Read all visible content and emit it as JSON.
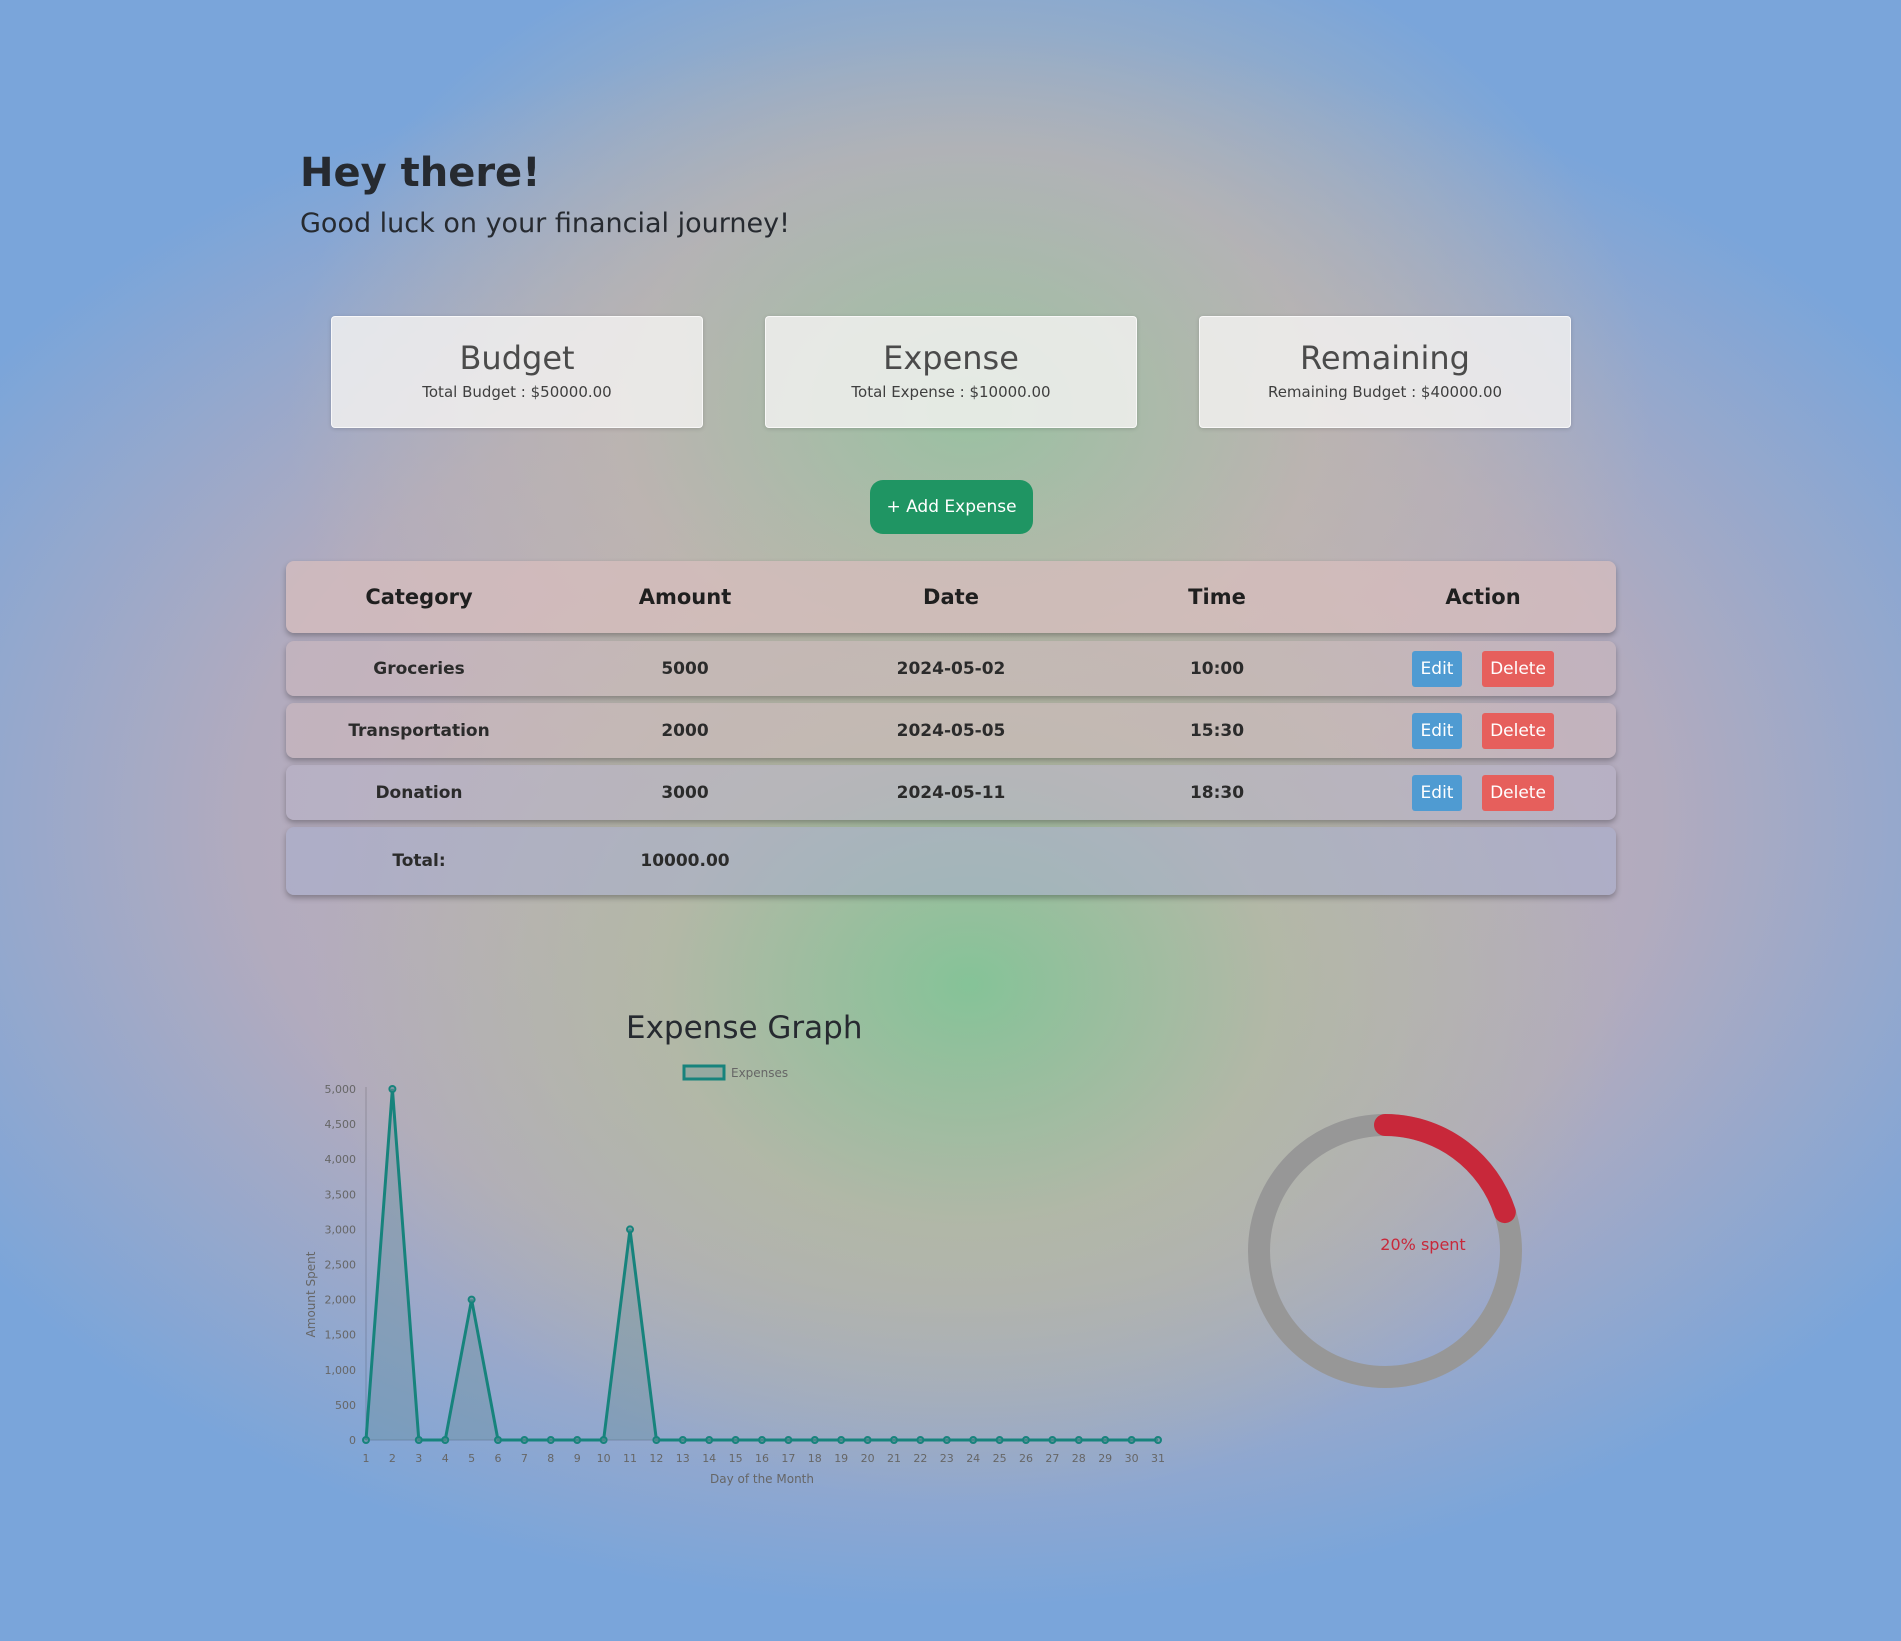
{
  "greeting": {
    "title": "Hey there!",
    "subtitle": "Good luck on your financial journey!"
  },
  "cards": {
    "budget": {
      "title": "Budget",
      "text": "Total Budget : $50000.00"
    },
    "expense": {
      "title": "Expense",
      "text": "Total Expense : $10000.00"
    },
    "remaining": {
      "title": "Remaining",
      "text": "Remaining Budget : $40000.00"
    }
  },
  "add_button": "+ Add Expense",
  "table": {
    "headers": [
      "Category",
      "Amount",
      "Date",
      "Time",
      "Action"
    ],
    "rows": [
      {
        "category": "Groceries",
        "amount": "5000",
        "date": "2024-05-02",
        "time": "10:00"
      },
      {
        "category": "Transportation",
        "amount": "2000",
        "date": "2024-05-05",
        "time": "15:30"
      },
      {
        "category": "Donation",
        "amount": "3000",
        "date": "2024-05-11",
        "time": "18:30"
      }
    ],
    "edit_label": "Edit",
    "delete_label": "Delete",
    "total_label": "Total:",
    "total_value": "10000.00"
  },
  "colors": {
    "accent_green": "#1f9563",
    "edit_blue": "#4f9bd2",
    "delete_red": "#e65f5c",
    "line_teal": "#17837c",
    "donut_red": "#c8283a",
    "donut_gray": "#979797"
  },
  "donut": {
    "percent_spent": 20,
    "label": "20% spent"
  },
  "chart_data": {
    "type": "line",
    "title": "Expense Graph",
    "xlabel": "Day of the Month",
    "ylabel": "Amount Spent",
    "legend": [
      "Expenses"
    ],
    "legend_position": "top-center",
    "grid": false,
    "ylim": [
      0,
      5000
    ],
    "yticks": [
      "0",
      "500",
      "1,000",
      "1,500",
      "2,000",
      "2,500",
      "3,000",
      "3,500",
      "4,000",
      "4,500",
      "5,000"
    ],
    "x": [
      1,
      2,
      3,
      4,
      5,
      6,
      7,
      8,
      9,
      10,
      11,
      12,
      13,
      14,
      15,
      16,
      17,
      18,
      19,
      20,
      21,
      22,
      23,
      24,
      25,
      26,
      27,
      28,
      29,
      30,
      31
    ],
    "series": [
      {
        "name": "Expenses",
        "values": [
          0,
          5000,
          0,
          0,
          2000,
          0,
          0,
          0,
          0,
          0,
          3000,
          0,
          0,
          0,
          0,
          0,
          0,
          0,
          0,
          0,
          0,
          0,
          0,
          0,
          0,
          0,
          0,
          0,
          0,
          0,
          0
        ]
      }
    ]
  }
}
